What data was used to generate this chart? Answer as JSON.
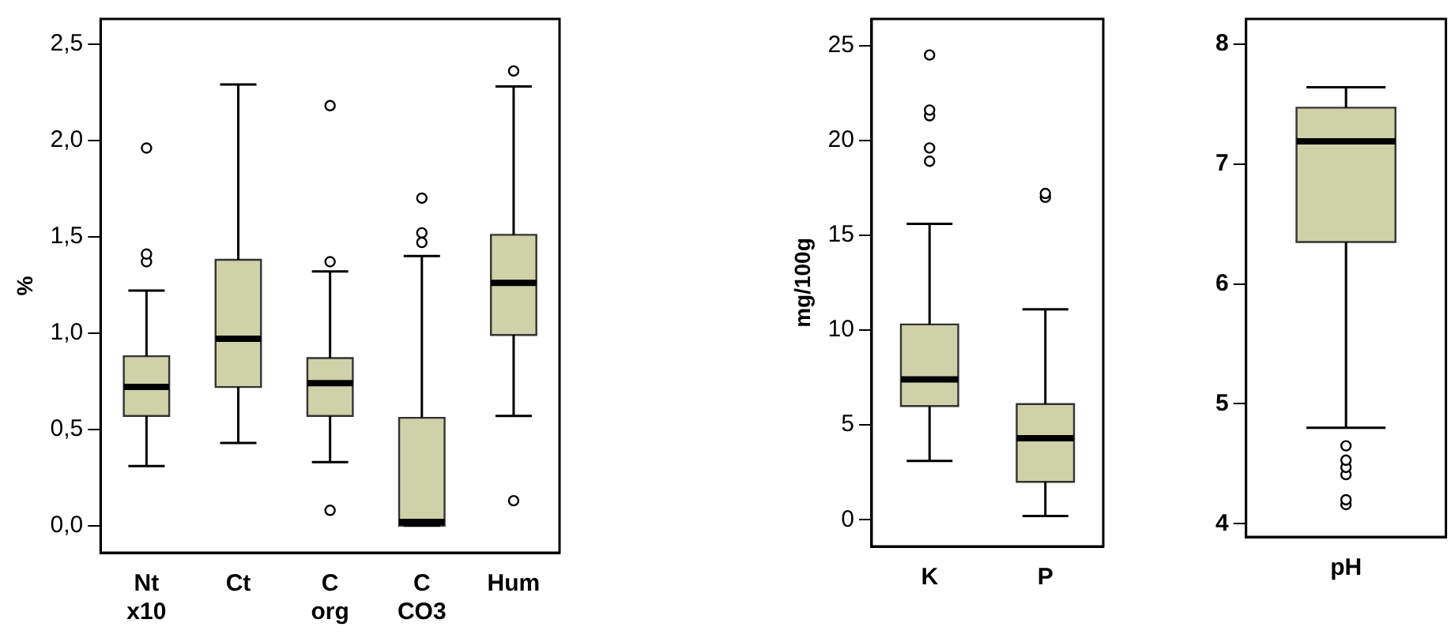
{
  "chart_data": [
    {
      "type": "box",
      "ylabel": "%",
      "categories": [
        "Nt x10",
        "Ct",
        "C org",
        "C CO3",
        "Hum"
      ],
      "ylim": [
        -0.14,
        2.63
      ],
      "yticks": [
        {
          "value": 0,
          "label": "0,0"
        },
        {
          "value": 0.5,
          "label": "0,5"
        },
        {
          "value": 1,
          "label": "1,0"
        },
        {
          "value": 1.5,
          "label": "1,5"
        },
        {
          "value": 2,
          "label": "2,0"
        },
        {
          "value": 2.5,
          "label": "2,5"
        }
      ],
      "grid": false,
      "legend": false,
      "series": [
        {
          "color": "#cfd1a8",
          "boxes": [
            {
              "low": 0.31,
              "q1": 0.57,
              "median": 0.72,
              "q3": 0.88,
              "high": 1.22,
              "outliers": [
                1.37,
                1.41,
                1.96
              ]
            },
            {
              "low": 0.43,
              "q1": 0.72,
              "median": 0.97,
              "q3": 1.38,
              "high": 2.29
            },
            {
              "low": 0.33,
              "q1": 0.57,
              "median": 0.74,
              "q3": 0.87,
              "high": 1.32,
              "outliers": [
                0.08,
                1.37,
                2.18
              ]
            },
            {
              "low": 0,
              "q1": 0,
              "median": 0.02,
              "q3": 0.56,
              "high": 1.4,
              "outliers": [
                1.47,
                1.52,
                1.7
              ]
            },
            {
              "low": 0.57,
              "q1": 0.99,
              "median": 1.26,
              "q3": 1.51,
              "high": 2.28,
              "outliers": [
                0.13,
                2.36
              ]
            }
          ]
        }
      ]
    },
    {
      "type": "box",
      "ylabel": "mg/100g",
      "categories": [
        "K",
        "P"
      ],
      "ylim": [
        -1.4,
        26.4
      ],
      "yticks": [
        0,
        5,
        10,
        15,
        20,
        25
      ],
      "grid": false,
      "legend": false,
      "series": [
        {
          "color": "#cfd1a8",
          "boxes": [
            {
              "low": 3.1,
              "q1": 6.0,
              "median": 7.4,
              "q3": 10.3,
              "high": 15.6,
              "outliers": [
                18.9,
                19.6,
                21.3,
                21.6,
                24.5
              ]
            },
            {
              "low": 0.2,
              "q1": 2.0,
              "median": 4.3,
              "q3": 6.1,
              "high": 11.1,
              "outliers": [
                17.0,
                17.2
              ]
            }
          ]
        }
      ]
    },
    {
      "type": "box",
      "categories": [
        "pH"
      ],
      "ylim": [
        3.89,
        8.21
      ],
      "yticks": [
        4,
        5,
        6,
        7,
        8
      ],
      "grid": false,
      "legend": false,
      "series": [
        {
          "color": "#cfd1a8",
          "boxes": [
            {
              "low": 4.8,
              "q1": 6.35,
              "median": 7.19,
              "q3": 7.47,
              "high": 7.64,
              "outliers": [
                4.16,
                4.2,
                4.41,
                4.47,
                4.53,
                4.65
              ]
            }
          ]
        }
      ]
    }
  ]
}
